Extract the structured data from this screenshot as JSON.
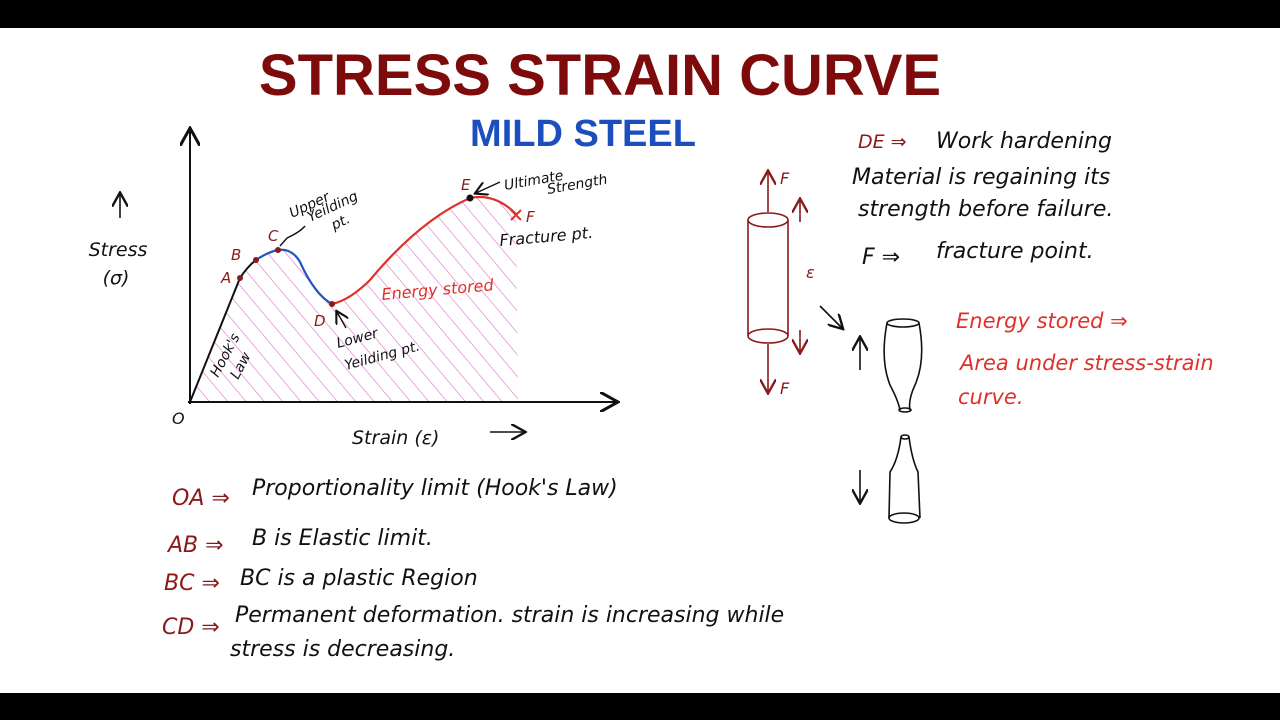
{
  "header": {
    "title": "STRESS STRAIN CURVE",
    "subtitle": "MILD STEEL"
  },
  "graph": {
    "y_label": "Stress",
    "y_symbol": "(σ)",
    "x_label": "Strain (ε)",
    "origin": "O",
    "points": [
      "A",
      "B",
      "C",
      "D",
      "E",
      "F"
    ],
    "annotations": {
      "hooks_law": [
        "Hook's",
        "Law"
      ],
      "upper_yield": [
        "Upper",
        "Yeilding",
        "pt."
      ],
      "ultimate": [
        "Ultimate",
        "Strength"
      ],
      "fracture": "Fracture pt.",
      "lower_yield": [
        "Lower",
        "Yeilding pt."
      ],
      "energy": "Energy stored"
    }
  },
  "notes": [
    {
      "key": "OA ⇒",
      "lines": [
        "Proportionality limit (Hook's Law)"
      ]
    },
    {
      "key": "AB ⇒",
      "lines": [
        "B is Elastic limit."
      ]
    },
    {
      "key": "BC ⇒",
      "lines": [
        "BC is a plastic Region"
      ]
    },
    {
      "key": "CD ⇒",
      "lines": [
        "Permanent deformation. strain is increasing while",
        "stress is decreasing."
      ]
    }
  ],
  "right_notes": {
    "de_key": "DE ⇒",
    "de_text": "Work hardening",
    "de_lines": [
      "Material is regaining its",
      "strength before failure."
    ],
    "f_key": "F ⇒",
    "f_text": "fracture point.",
    "energy_key": "Energy stored ⇒",
    "energy_lines": [
      "Area under stress-strain",
      "curve."
    ]
  },
  "specimen": {
    "force_top": "F",
    "force_bottom": "F",
    "strain": "ε"
  }
}
